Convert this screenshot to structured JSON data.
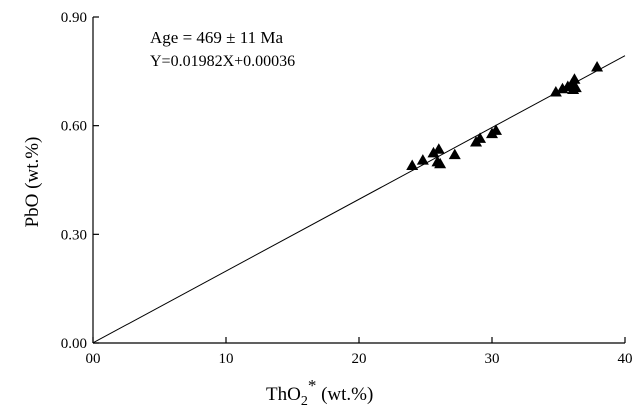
{
  "chart_data": {
    "type": "scatter",
    "xlabel": "ThO",
    "xlabel_sub": "2",
    "xlabel_sup": "*",
    "xlabel_units": " (wt.%)",
    "ylabel": "PbO (wt.%)",
    "xlim": [
      0,
      40
    ],
    "ylim": [
      0,
      0.9
    ],
    "x_ticks": [
      0,
      10,
      20,
      30,
      40
    ],
    "x_tick_labels": [
      "00",
      "10",
      "20",
      "30",
      "40"
    ],
    "y_ticks": [
      0,
      0.3,
      0.6,
      0.9
    ],
    "y_tick_labels": [
      "0.00",
      "0.30",
      "0.60",
      "0.90"
    ],
    "annotations": [
      "Age = 469 ± 11 Ma",
      "Y=0.01982X+0.00036"
    ],
    "fit_line": {
      "slope": 0.01982,
      "intercept": 0.00036
    },
    "marker": "filled-triangle",
    "color": "#000000",
    "points": [
      {
        "x": 24.0,
        "y": 0.49
      },
      {
        "x": 24.8,
        "y": 0.505
      },
      {
        "x": 25.6,
        "y": 0.525
      },
      {
        "x": 25.9,
        "y": 0.5
      },
      {
        "x": 26.0,
        "y": 0.535
      },
      {
        "x": 26.1,
        "y": 0.495
      },
      {
        "x": 27.2,
        "y": 0.52
      },
      {
        "x": 28.8,
        "y": 0.555
      },
      {
        "x": 29.1,
        "y": 0.565
      },
      {
        "x": 30.0,
        "y": 0.578
      },
      {
        "x": 30.3,
        "y": 0.587
      },
      {
        "x": 34.8,
        "y": 0.693
      },
      {
        "x": 35.3,
        "y": 0.702
      },
      {
        "x": 35.7,
        "y": 0.708
      },
      {
        "x": 36.0,
        "y": 0.715
      },
      {
        "x": 36.1,
        "y": 0.7
      },
      {
        "x": 36.2,
        "y": 0.728
      },
      {
        "x": 36.3,
        "y": 0.705
      },
      {
        "x": 37.9,
        "y": 0.762
      }
    ]
  }
}
